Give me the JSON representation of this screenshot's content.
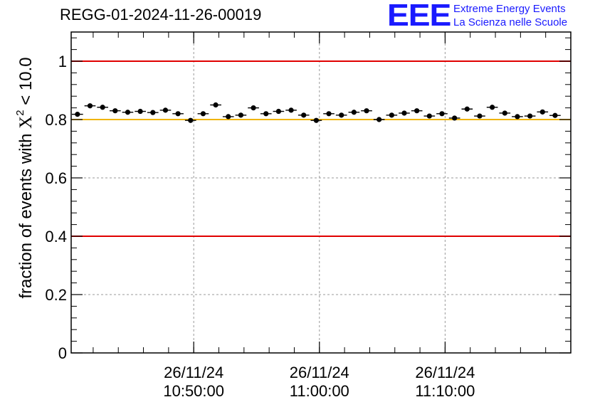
{
  "header": {
    "run_id": "REGG-01-2024-11-26-00019",
    "logo_mark": "EEE",
    "logo_line1": "Extreme Energy Events",
    "logo_line2": "La Scienza nelle Scuole"
  },
  "colors": {
    "threshold_red": "#e00000",
    "threshold_gold": "#f0b400",
    "logo_blue": "#1a1aff",
    "marker": "#000000",
    "grid": "#999999"
  },
  "chart_data": {
    "type": "scatter",
    "title": "REGG-01-2024-11-26-00019",
    "ylabel_prefix": "fraction of events with ",
    "ylabel_symbol": "X",
    "ylabel_superscript": "2",
    "ylabel_suffix": " < 10.0",
    "xlabel": "",
    "ylim": [
      0,
      1.1
    ],
    "xlim_minutes": [
      10.0,
      0.0
    ],
    "x_start": "10:40:15",
    "x_end": "11:20:00",
    "xlim": [
      0,
      2385
    ],
    "x_ticks": [
      {
        "date": "26/11/24",
        "time": "10:50:00",
        "seconds": 585
      },
      {
        "date": "26/11/24",
        "time": "11:00:00",
        "seconds": 1185
      },
      {
        "date": "26/11/24",
        "time": "11:10:00",
        "seconds": 1785
      }
    ],
    "y_ticks": [
      {
        "value": 0,
        "label": "0"
      },
      {
        "value": 0.2,
        "label": "0.2"
      },
      {
        "value": 0.4,
        "label": "0.4"
      },
      {
        "value": 0.6,
        "label": "0.6"
      },
      {
        "value": 0.8,
        "label": "0.8"
      },
      {
        "value": 1.0,
        "label": "1"
      }
    ],
    "thresholds": [
      {
        "value": 1.0,
        "color": "#e00000"
      },
      {
        "value": 0.8,
        "color": "#f0b400"
      },
      {
        "value": 0.4,
        "color": "#e00000"
      }
    ],
    "bin_width_seconds": 60,
    "values": [
      0.818,
      0.847,
      0.842,
      0.83,
      0.825,
      0.828,
      0.824,
      0.832,
      0.82,
      0.797,
      0.82,
      0.85,
      0.81,
      0.815,
      0.84,
      0.82,
      0.828,
      0.832,
      0.815,
      0.797,
      0.82,
      0.815,
      0.825,
      0.83,
      0.8,
      0.815,
      0.822,
      0.83,
      0.812,
      0.82,
      0.805,
      0.836,
      0.812,
      0.842,
      0.822,
      0.81,
      0.812,
      0.826,
      0.814
    ],
    "errors": [
      0.006,
      0.006,
      0.006,
      0.006,
      0.006,
      0.006,
      0.006,
      0.006,
      0.006,
      0.006,
      0.006,
      0.006,
      0.006,
      0.006,
      0.006,
      0.006,
      0.006,
      0.006,
      0.006,
      0.006,
      0.006,
      0.006,
      0.006,
      0.006,
      0.006,
      0.006,
      0.006,
      0.006,
      0.006,
      0.006,
      0.006,
      0.006,
      0.006,
      0.006,
      0.006,
      0.006,
      0.006,
      0.006,
      0.006
    ]
  }
}
